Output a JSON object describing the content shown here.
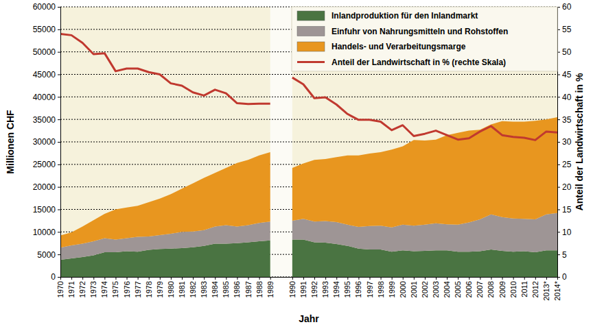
{
  "chart_data": {
    "type": "area",
    "stacked": true,
    "x_label": "Jahr",
    "y_label": "Millionen CHF",
    "y2_label": "Anteil der Landwirtschaft in %",
    "categories": [
      "1970",
      "1971",
      "1972",
      "1973",
      "1974",
      "1975",
      "1976",
      "1977",
      "1978",
      "1979",
      "1980",
      "1981",
      "1982",
      "1983",
      "1984",
      "1985",
      "1986",
      "1987",
      "1988",
      "1989",
      null,
      "1990",
      "1991",
      "1992",
      "1993",
      "1994",
      "1995",
      "1996",
      "1997",
      "1998",
      "1999",
      "2000",
      "2001",
      "2002",
      "2003",
      "2004",
      "2005",
      "2006",
      "2007",
      "2008",
      "2009",
      "2010",
      "2011",
      "2012",
      "2013*",
      "2014*"
    ],
    "series": [
      {
        "name": "Inlandproduktion für den Inlandmarkt",
        "type": "area",
        "color": "#4a7442",
        "values": [
          3800,
          4100,
          4400,
          4800,
          5500,
          5500,
          5700,
          5600,
          6000,
          6200,
          6300,
          6400,
          6600,
          6900,
          7400,
          7400,
          7500,
          7700,
          7900,
          8100,
          null,
          8300,
          8300,
          7700,
          7600,
          7300,
          6900,
          6300,
          6100,
          6100,
          5600,
          5900,
          5700,
          5800,
          5900,
          5900,
          5600,
          5600,
          5700,
          6100,
          5800,
          5600,
          5700,
          5500,
          5900,
          5900
        ]
      },
      {
        "name": "Einfuhr von Nahrungsmitteln und Rohstoffen",
        "type": "area",
        "color": "#9e9595",
        "values": [
          2700,
          2900,
          3000,
          3100,
          3100,
          2800,
          2900,
          3300,
          3000,
          3100,
          3300,
          3600,
          3500,
          3500,
          3800,
          4100,
          3700,
          3800,
          4100,
          4200,
          null,
          4200,
          4600,
          4600,
          4800,
          4900,
          4700,
          4800,
          5200,
          5300,
          5400,
          5700,
          5700,
          5800,
          6000,
          5800,
          6000,
          6500,
          7100,
          7800,
          7500,
          7400,
          7200,
          7300,
          8000,
          8300
        ]
      },
      {
        "name": "Handels- und Verarbeitungsmarge",
        "type": "area",
        "color": "#e8961f",
        "values": [
          2700,
          2900,
          3800,
          4700,
          5400,
          6700,
          6800,
          6900,
          7600,
          8100,
          8800,
          9600,
          10700,
          11600,
          11900,
          12700,
          14100,
          14500,
          15000,
          15400,
          null,
          11700,
          12300,
          13700,
          13800,
          14400,
          15400,
          15900,
          16100,
          16300,
          17300,
          17400,
          19000,
          18700,
          18600,
          19800,
          20400,
          20400,
          19900,
          20000,
          21300,
          21500,
          21600,
          21900,
          21100,
          21300
        ]
      },
      {
        "name": "Anteil der Landwirtschaft in % (rechte Skala)",
        "type": "line",
        "axis": "y2",
        "color": "#c0392f",
        "values": [
          54,
          53.7,
          52,
          49.5,
          49.7,
          45.7,
          46.3,
          46.3,
          45.5,
          45,
          43,
          42.5,
          41,
          40.3,
          41.6,
          40.8,
          38.6,
          38.4,
          38.5,
          38.5,
          null,
          44.3,
          42.8,
          39.7,
          39.9,
          38.3,
          36.2,
          34.9,
          34.9,
          34.5,
          32.6,
          33.7,
          31.3,
          31.8,
          32.5,
          31.5,
          30.5,
          30.8,
          32.3,
          33.5,
          31.5,
          31.1,
          30.9,
          30.4,
          32.3,
          32.1
        ]
      }
    ],
    "ylim": [
      0,
      60000
    ],
    "yticks": [
      0,
      5000,
      10000,
      15000,
      20000,
      25000,
      30000,
      35000,
      40000,
      45000,
      50000,
      55000,
      60000
    ],
    "y2lim": [
      0,
      60
    ],
    "y2ticks": [
      0,
      5,
      10,
      15,
      20,
      25,
      30,
      35,
      40,
      45,
      50,
      55,
      60
    ],
    "grid": true,
    "legend": "upper right"
  }
}
